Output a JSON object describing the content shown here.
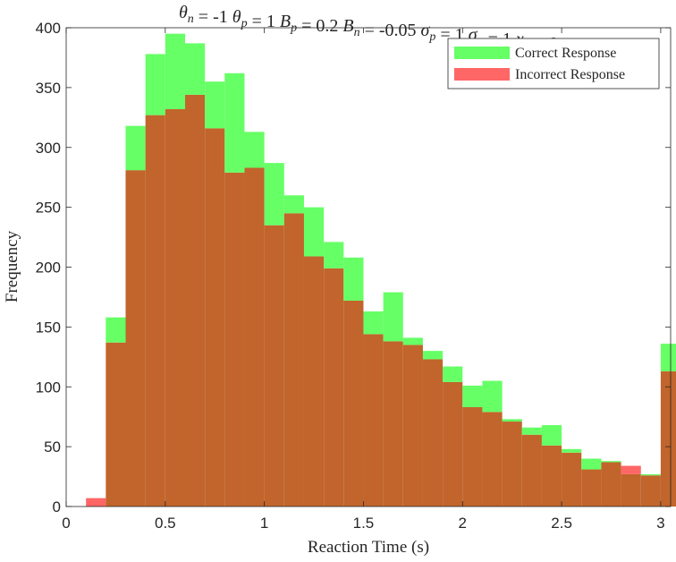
{
  "chart_data": {
    "type": "bar",
    "title": "θn = -1 θp = 1 Bp = 0.2 Bn = -0.05 σp = 1 σn = 1 x0 = 0",
    "xlabel": "Reaction Time (s)",
    "ylabel": "Frequency",
    "xlim": [
      0,
      3.05
    ],
    "ylim": [
      0,
      400
    ],
    "xticks": [
      0,
      0.5,
      1,
      1.5,
      2,
      2.5,
      3
    ],
    "xtick_labels": [
      "0",
      "0.5",
      "1",
      "1.5",
      "2",
      "2.5",
      "3"
    ],
    "yticks": [
      0,
      50,
      100,
      150,
      200,
      250,
      300,
      350,
      400
    ],
    "ytick_labels": [
      "0",
      "50",
      "100",
      "150",
      "200",
      "250",
      "300",
      "350",
      "400"
    ],
    "bin_edges": [
      0.1,
      0.2,
      0.3,
      0.4,
      0.5,
      0.6,
      0.7,
      0.8,
      0.9,
      1.0,
      1.1,
      1.2,
      1.3,
      1.4,
      1.5,
      1.6,
      1.7,
      1.8,
      1.9,
      2.0,
      2.1,
      2.2,
      2.3,
      2.4,
      2.5,
      2.6,
      2.7,
      2.8,
      2.9,
      3.0
    ],
    "legend_position": "top-right",
    "series": [
      {
        "name": "Correct Response",
        "color": "#66ff66",
        "values": [
          0,
          158,
          318,
          378,
          395,
          387,
          355,
          362,
          313,
          287,
          260,
          250,
          221,
          208,
          163,
          179,
          141,
          130,
          117,
          101,
          105,
          73,
          66,
          68,
          48,
          40,
          38,
          27,
          27,
          136
        ]
      },
      {
        "name": "Incorrect Response",
        "color": "#ff6666",
        "values": [
          7,
          137,
          281,
          327,
          332,
          344,
          316,
          279,
          283,
          235,
          245,
          209,
          199,
          172,
          144,
          138,
          135,
          123,
          104,
          83,
          79,
          71,
          60,
          51,
          45,
          31,
          37,
          34,
          26,
          113
        ]
      }
    ],
    "overlap_color": "#c1652c"
  }
}
